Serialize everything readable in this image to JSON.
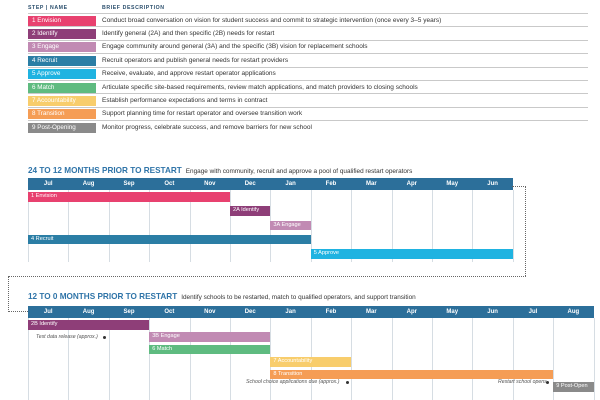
{
  "legend": {
    "header_step": "STEP | NAME",
    "header_desc": "BRIEF DESCRIPTION",
    "rows": [
      {
        "label": "1  Envision",
        "color": "#e8416f",
        "desc": "Conduct broad conversation on vision for student success and commit to strategic intervention (once every 3–5 years)"
      },
      {
        "label": "2  Identify",
        "color": "#8e3e78",
        "desc": "Identify general (2A) and then specific (2B) needs for restart"
      },
      {
        "label": "3  Engage",
        "color": "#c18ab3",
        "desc": "Engage community around general (3A) and the specific (3B) vision for replacement schools"
      },
      {
        "label": "4  Recruit",
        "color": "#2b7ea5",
        "desc": "Recruit operators and publish general needs for restart providers"
      },
      {
        "label": "5  Approve",
        "color": "#1fb3e1",
        "desc": "Receive, evaluate, and approve restart operator applications"
      },
      {
        "label": "6  Match",
        "color": "#5fbb80",
        "desc": "Articulate specific site-based requirements, review match applications, and match providers to closing schools"
      },
      {
        "label": "7  Accountability",
        "color": "#f8cd6c",
        "desc": "Establish performance expectations and terms in contract"
      },
      {
        "label": "8  Transition",
        "color": "#f59d55",
        "desc": "Support planning time for restart operator and oversee transition work"
      },
      {
        "label": "9  Post-Opening",
        "color": "#8a8a8a",
        "desc": "Monitor progress, celebrate success, and remove barriers for new school"
      }
    ]
  },
  "timeline1": {
    "title": "24 TO 12 MONTHS PRIOR TO RESTART",
    "subtitle": "Engage with community, recruit and approve a pool of qualified restart operators",
    "months": [
      "Jul",
      "Aug",
      "Sep",
      "Oct",
      "Nov",
      "Dec",
      "Jan",
      "Feb",
      "Mar",
      "Apr",
      "May",
      "Jun"
    ],
    "bars": [
      {
        "label": "1 Envision",
        "color": "#e8416f",
        "start": 0,
        "end": 5,
        "row": 0
      },
      {
        "label": "2A Identify",
        "color": "#8e3e78",
        "start": 5,
        "end": 6,
        "row": 1
      },
      {
        "label": "3A Engage",
        "color": "#c18ab3",
        "start": 6,
        "end": 7,
        "row": 2
      },
      {
        "label": "4 Recruit",
        "color": "#2b7ea5",
        "start": 0,
        "end": 7,
        "row": 3
      },
      {
        "label": "5 Approve",
        "color": "#1fb3e1",
        "start": 7,
        "end": 12,
        "row": 4
      }
    ]
  },
  "timeline2": {
    "title": "12 TO 0 MONTHS PRIOR TO RESTART",
    "subtitle": "Identify schools to be restarted, match to qualified operators, and support transition",
    "months": [
      "Jul",
      "Aug",
      "Sep",
      "Oct",
      "Nov",
      "Dec",
      "Jan",
      "Feb",
      "Mar",
      "Apr",
      "May",
      "Jun",
      "Jul",
      "Aug"
    ],
    "bars": [
      {
        "label": "2B Identify",
        "color": "#8e3e78",
        "start": 0,
        "end": 3,
        "row": 0
      },
      {
        "label": "3B Engage",
        "color": "#c18ab3",
        "start": 3,
        "end": 6,
        "row": 1
      },
      {
        "label": "6 Match",
        "color": "#5fbb80",
        "start": 3,
        "end": 6,
        "row": 2
      },
      {
        "label": "7 Accountability",
        "color": "#f8cd6c",
        "start": 6,
        "end": 8,
        "row": 3
      },
      {
        "label": "8 Transition",
        "color": "#f59d55",
        "start": 6,
        "end": 13,
        "row": 4
      },
      {
        "label": "9 Post-Open",
        "color": "#8a8a8a",
        "start": 13,
        "end": 14,
        "row": 5
      }
    ],
    "notes": {
      "test_data": "Test data release (approx.)",
      "school_choice": "School choice applications due (approx.)",
      "restart_open": "Restart school opens"
    }
  }
}
